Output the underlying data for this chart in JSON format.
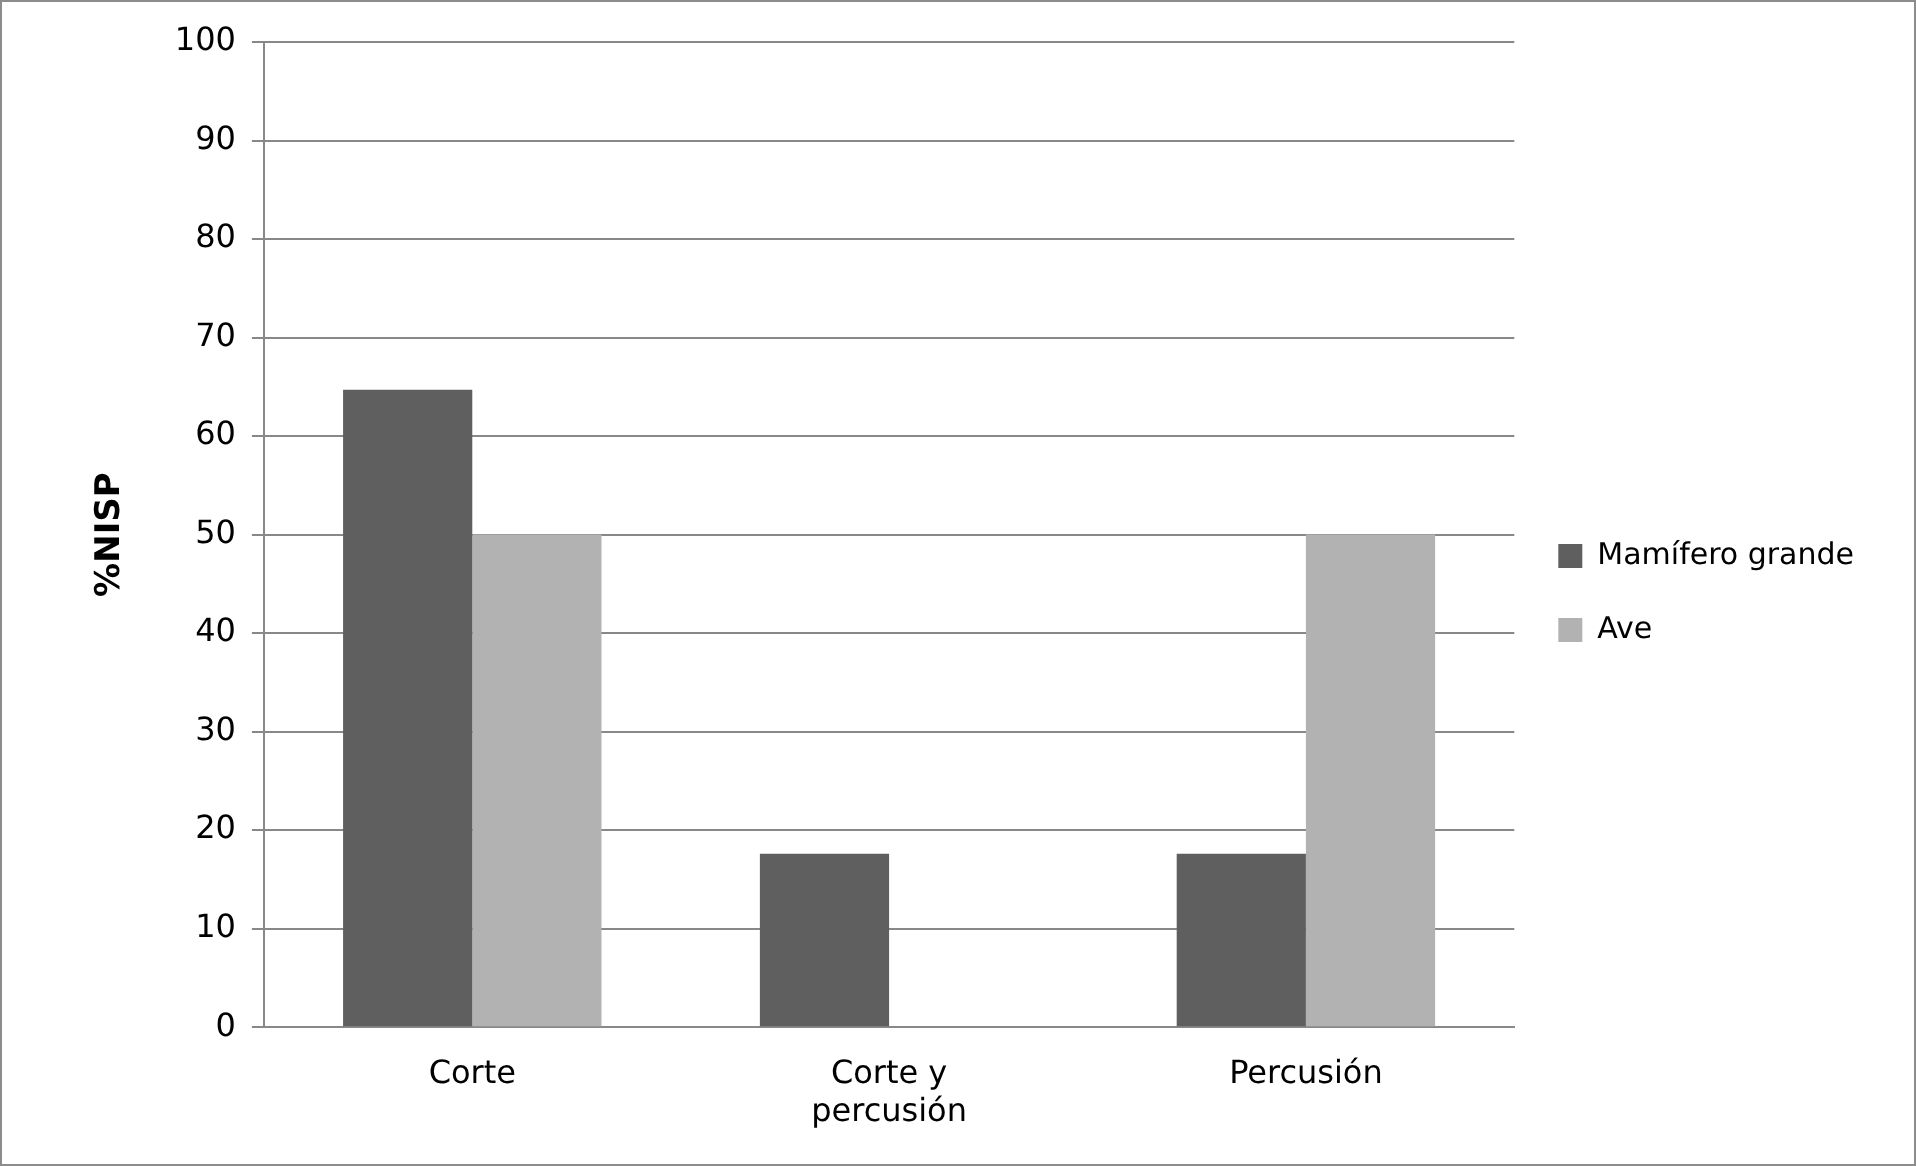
{
  "chart_data": {
    "type": "bar",
    "ylabel": "%NISP",
    "categories": [
      "Corte",
      "Corte y percusión",
      "Percusión"
    ],
    "series": [
      {
        "name": "Mamífero grande",
        "color": "#5f5f5f",
        "values": [
          64.7,
          17.6,
          17.6
        ]
      },
      {
        "name": "Ave",
        "color": "#b2b2b2",
        "values": [
          50,
          0,
          50
        ]
      }
    ],
    "ylim": [
      0,
      100
    ],
    "yticks": [
      0,
      10,
      20,
      30,
      40,
      50,
      60,
      70,
      80,
      90,
      100
    ],
    "grid": "y",
    "legend": "right"
  }
}
